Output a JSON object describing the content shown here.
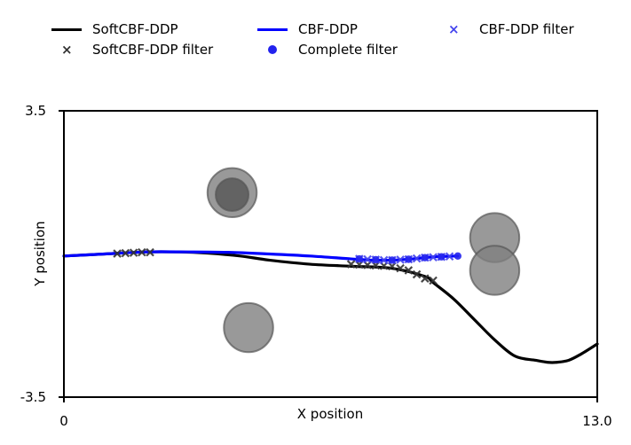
{
  "legend": {
    "items": [
      {
        "label": "SoftCBF-DDP",
        "marker": "line",
        "color": "#000000"
      },
      {
        "label": "SoftCBF-DDP filter",
        "marker": "x",
        "color": "#333333"
      },
      {
        "label": "CBF-DDP",
        "marker": "line",
        "color": "#0000ff"
      },
      {
        "label": "Complete filter",
        "marker": "dot",
        "color": "#2222ee"
      },
      {
        "label": "CBF-DDP filter",
        "marker": "x",
        "color": "#4444ee"
      }
    ]
  },
  "chart_data": {
    "type": "line",
    "title": "",
    "xlabel": "X position",
    "ylabel": "Y position",
    "xlim": [
      0,
      13.0
    ],
    "ylim": [
      -3.5,
      3.5
    ],
    "xtick_labels": [
      "0",
      "13.0"
    ],
    "ytick_labels": [
      "3.5",
      "-3.5"
    ],
    "boundaries": [
      3.5,
      -3.5
    ],
    "obstacles": [
      {
        "x": 4.1,
        "y": 1.5,
        "r": 0.6,
        "color": "#808080"
      },
      {
        "x": 4.1,
        "y": 1.45,
        "r": 0.4,
        "color": "#555555"
      },
      {
        "x": 4.5,
        "y": -1.8,
        "r": 0.6,
        "color": "#808080"
      },
      {
        "x": 10.5,
        "y": 0.4,
        "r": 0.6,
        "color": "#808080"
      },
      {
        "x": 10.5,
        "y": -0.4,
        "r": 0.6,
        "color": "#808080"
      }
    ],
    "series": [
      {
        "name": "SoftCBF-DDP",
        "color": "#000000",
        "x": [
          0,
          1.0,
          2.0,
          2.8,
          3.5,
          4.3,
          5.0,
          6.0,
          7.0,
          8.0,
          8.8,
          9.0,
          9.5,
          10.0,
          10.5,
          11.0,
          11.5,
          11.8,
          12.0,
          12.3,
          12.6,
          13.0
        ],
        "y": [
          -0.05,
          0.0,
          0.05,
          0.05,
          0.02,
          -0.05,
          -0.15,
          -0.25,
          -0.3,
          -0.35,
          -0.55,
          -0.7,
          -1.1,
          -1.6,
          -2.1,
          -2.5,
          -2.6,
          -2.65,
          -2.65,
          -2.6,
          -2.45,
          -2.2
        ]
      },
      {
        "name": "CBF-DDP",
        "color": "#0000ff",
        "x": [
          0,
          1.0,
          2.0,
          3.0,
          4.0,
          5.0,
          6.0,
          7.0,
          7.5,
          8.0,
          8.5,
          9.0,
          9.6
        ],
        "y": [
          -0.05,
          0.0,
          0.05,
          0.05,
          0.04,
          0.0,
          -0.05,
          -0.12,
          -0.15,
          -0.15,
          -0.12,
          -0.07,
          -0.05
        ]
      }
    ],
    "filters": [
      {
        "name": "SoftCBF-DDP filter",
        "color": "#333333",
        "marker": "x",
        "x": [
          1.3,
          1.5,
          1.7,
          1.9,
          2.1,
          7.0,
          7.2,
          7.4,
          7.6,
          7.8,
          8.0,
          8.2,
          8.4,
          8.6,
          8.8,
          9.0
        ],
        "y": [
          0.01,
          0.02,
          0.03,
          0.04,
          0.04,
          -0.25,
          -0.26,
          -0.27,
          -0.28,
          -0.29,
          -0.3,
          -0.35,
          -0.4,
          -0.5,
          -0.6,
          -0.65
        ]
      },
      {
        "name": "CBF-DDP filter",
        "color": "#4444ee",
        "marker": "x",
        "x": [
          7.2,
          7.4,
          7.6,
          7.8,
          8.0,
          8.2,
          8.4,
          8.6,
          8.8,
          9.0,
          9.2,
          9.4
        ],
        "y": [
          -0.12,
          -0.13,
          -0.14,
          -0.15,
          -0.15,
          -0.14,
          -0.13,
          -0.11,
          -0.09,
          -0.08,
          -0.07,
          -0.06
        ]
      },
      {
        "name": "Complete filter",
        "color": "#2222ee",
        "marker": "dot",
        "x": [
          7.2,
          7.6,
          8.0,
          8.4,
          8.8,
          9.2,
          9.6
        ],
        "y": [
          -0.12,
          -0.14,
          -0.15,
          -0.13,
          -0.09,
          -0.07,
          -0.05
        ]
      }
    ],
    "grid": false,
    "legend_position": "top"
  }
}
